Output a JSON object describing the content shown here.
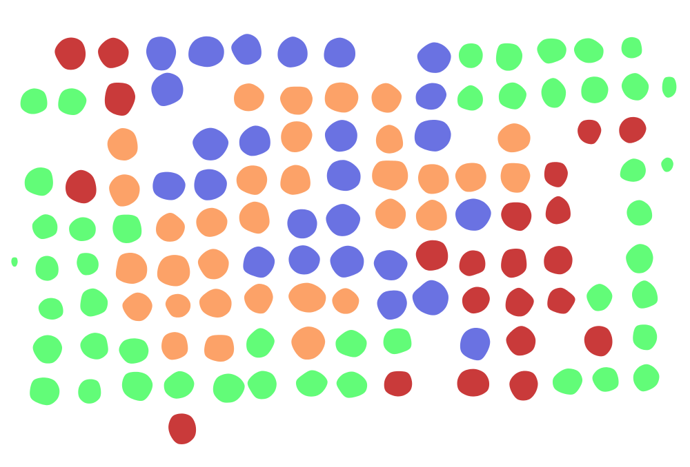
{
  "palette": {
    "red": "#c93a3a",
    "blue": "#6a72e2",
    "orange": "#fca268",
    "green": "#62fc78",
    "background": "#ffffff"
  },
  "blobs": [
    {
      "color": "red"
    },
    {
      "color": "red"
    },
    {
      "color": "blue"
    },
    {
      "color": "blue"
    },
    {
      "color": "blue"
    },
    {
      "color": "blue"
    },
    {
      "color": "blue"
    },
    {
      "color": "blue"
    },
    {
      "color": "green"
    },
    {
      "color": "green"
    },
    {
      "color": "green"
    },
    {
      "color": "green"
    },
    {
      "color": "green"
    },
    {
      "color": "green"
    },
    {
      "color": "green"
    },
    {
      "color": "red"
    },
    {
      "color": "blue"
    },
    {
      "color": "orange"
    },
    {
      "color": "orange"
    },
    {
      "color": "orange"
    },
    {
      "color": "orange"
    },
    {
      "color": "blue"
    },
    {
      "color": "green"
    },
    {
      "color": "green"
    },
    {
      "color": "green"
    },
    {
      "color": "green"
    },
    {
      "color": "green"
    },
    {
      "color": "green"
    },
    {
      "color": "orange"
    },
    {
      "color": "blue"
    },
    {
      "color": "blue"
    },
    {
      "color": "orange"
    },
    {
      "color": "blue"
    },
    {
      "color": "orange"
    },
    {
      "color": "blue"
    },
    {
      "color": "orange"
    },
    {
      "color": "red"
    },
    {
      "color": "red"
    },
    {
      "color": "green"
    },
    {
      "color": "red"
    },
    {
      "color": "orange"
    },
    {
      "color": "blue"
    },
    {
      "color": "blue"
    },
    {
      "color": "orange"
    },
    {
      "color": "orange"
    },
    {
      "color": "blue"
    },
    {
      "color": "orange"
    },
    {
      "color": "orange"
    },
    {
      "color": "orange"
    },
    {
      "color": "orange"
    },
    {
      "color": "red"
    },
    {
      "color": "green"
    },
    {
      "color": "green"
    },
    {
      "color": "green"
    },
    {
      "color": "green"
    },
    {
      "color": "green"
    },
    {
      "color": "orange"
    },
    {
      "color": "orange"
    },
    {
      "color": "orange"
    },
    {
      "color": "blue"
    },
    {
      "color": "blue"
    },
    {
      "color": "orange"
    },
    {
      "color": "orange"
    },
    {
      "color": "blue"
    },
    {
      "color": "red"
    },
    {
      "color": "red"
    },
    {
      "color": "green"
    },
    {
      "color": "green"
    },
    {
      "color": "green"
    },
    {
      "color": "green"
    },
    {
      "color": "orange"
    },
    {
      "color": "orange"
    },
    {
      "color": "orange"
    },
    {
      "color": "blue"
    },
    {
      "color": "blue"
    },
    {
      "color": "blue"
    },
    {
      "color": "blue"
    },
    {
      "color": "red"
    },
    {
      "color": "red"
    },
    {
      "color": "red"
    },
    {
      "color": "red"
    },
    {
      "color": "green"
    },
    {
      "color": "green"
    },
    {
      "color": "green"
    },
    {
      "color": "orange"
    },
    {
      "color": "orange"
    },
    {
      "color": "orange"
    },
    {
      "color": "orange"
    },
    {
      "color": "orange"
    },
    {
      "color": "orange"
    },
    {
      "color": "blue"
    },
    {
      "color": "blue"
    },
    {
      "color": "red"
    },
    {
      "color": "red"
    },
    {
      "color": "red"
    },
    {
      "color": "green"
    },
    {
      "color": "green"
    },
    {
      "color": "green"
    },
    {
      "color": "green"
    },
    {
      "color": "green"
    },
    {
      "color": "orange"
    },
    {
      "color": "orange"
    },
    {
      "color": "green"
    },
    {
      "color": "orange"
    },
    {
      "color": "green"
    },
    {
      "color": "green"
    },
    {
      "color": "blue"
    },
    {
      "color": "red"
    },
    {
      "color": "red"
    },
    {
      "color": "green"
    },
    {
      "color": "green"
    },
    {
      "color": "green"
    },
    {
      "color": "green"
    },
    {
      "color": "green"
    },
    {
      "color": "green"
    },
    {
      "color": "green"
    },
    {
      "color": "green"
    },
    {
      "color": "green"
    },
    {
      "color": "red"
    },
    {
      "color": "red"
    },
    {
      "color": "red"
    },
    {
      "color": "green"
    },
    {
      "color": "green"
    },
    {
      "color": "green"
    },
    {
      "color": "red"
    }
  ]
}
